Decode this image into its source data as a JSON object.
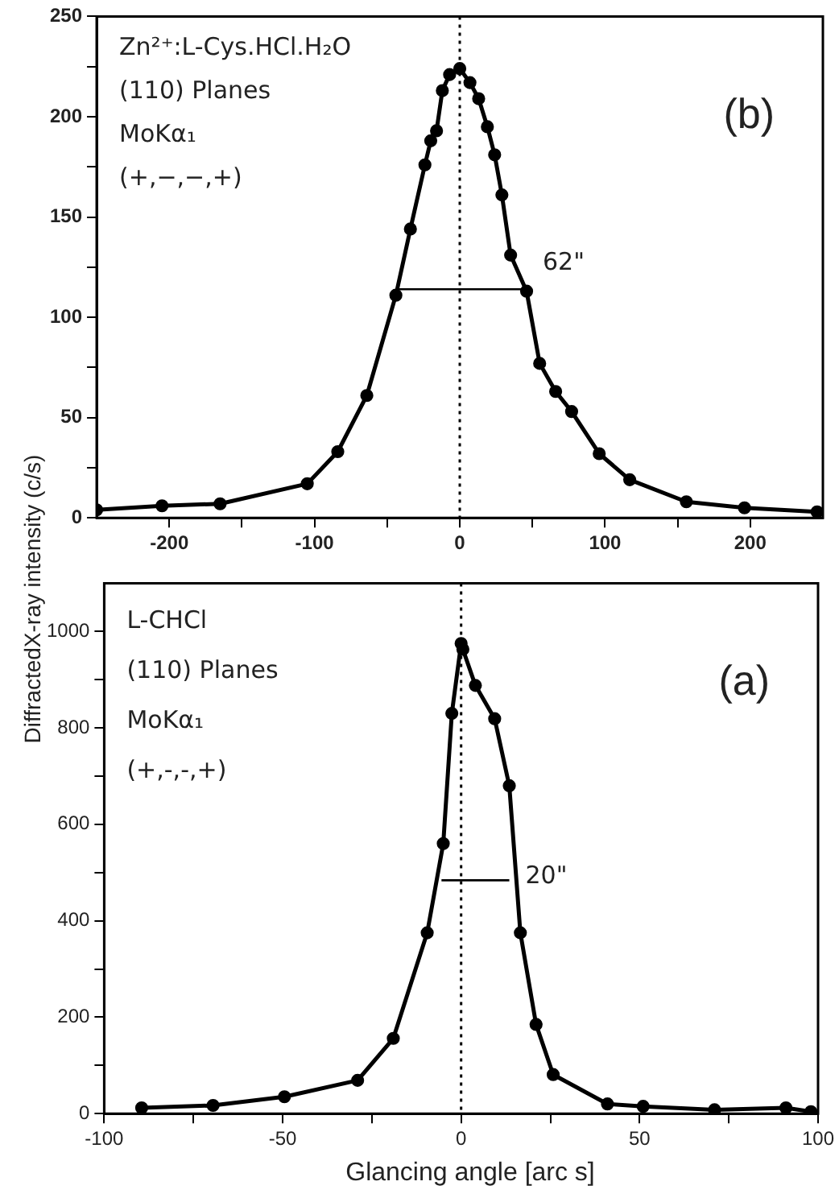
{
  "chart_data": [
    {
      "type": "line",
      "title": "(b)",
      "annotations": [
        "Zn²⁺:L-Cys.HCl.H₂O",
        "(110) Planes",
        "MoKα₁",
        "(+,−,−,+)",
        {
          "text": "62\"",
          "x": 46,
          "y": 114
        }
      ],
      "series": [
        {
          "color": "#000000",
          "marker": "circle",
          "x": [
            -250,
            -205,
            -165,
            -105,
            -84,
            -64,
            -44,
            -34,
            -24,
            -20,
            -16,
            -12,
            -7,
            0,
            7,
            13,
            19,
            24,
            29,
            35,
            46,
            55,
            66,
            77,
            96,
            117,
            156,
            196,
            246
          ],
          "values": [
            4,
            6,
            7,
            17,
            33,
            61,
            111,
            144,
            176,
            188,
            193,
            213,
            221,
            224,
            217,
            209,
            195,
            181,
            161,
            131,
            113,
            77,
            63,
            53,
            32,
            19,
            8,
            5,
            3
          ]
        },
        {
          "type": "line",
          "color": "#000000",
          "marker": "none",
          "x": [
            -44,
            46
          ],
          "values": [
            114,
            114
          ]
        }
      ],
      "ref_lines": [
        {
          "axis": "x",
          "value": 0,
          "line_style": "dotted",
          "color": "#000000"
        }
      ],
      "xlim": [
        -250,
        250
      ],
      "xticks": [
        -200,
        {
          "value": -150,
          "label": null
        },
        -100,
        {
          "value": -50,
          "label": null
        },
        0,
        {
          "value": 50,
          "label": null
        },
        100,
        {
          "value": 150,
          "label": null
        },
        200
      ],
      "ylim": [
        0,
        250
      ],
      "yticks": [
        0,
        {
          "value": 25,
          "label": null
        },
        50,
        {
          "value": 75,
          "label": null
        },
        100,
        {
          "value": 125,
          "label": null
        },
        150,
        {
          "value": 175,
          "label": null
        },
        200,
        {
          "value": 225,
          "label": null
        },
        250
      ],
      "grid": false,
      "legend": false,
      "line_style": "solid"
    },
    {
      "type": "line",
      "title": "(a)",
      "xlabel": "Glancing angle [arc s]",
      "ylabel": "DiffractedX-ray intensity (c/s)",
      "annotations": [
        "L-CHCl",
        "(110) Planes",
        "MoKα₁",
        "(+,-,-,+)",
        {
          "text": "20\"",
          "x": 13.5,
          "y": 484
        }
      ],
      "series": [
        {
          "color": "#000000",
          "marker": "circle",
          "x": [
            -89.5,
            -69.5,
            -49.5,
            -29,
            -19,
            -9.5,
            -5,
            -2.6,
            0,
            0.5,
            4,
            9.4,
            13.5,
            16.6,
            21,
            25.8,
            41,
            51,
            71,
            91,
            98
          ],
          "values": [
            12,
            17,
            35,
            69,
            156,
            375,
            560,
            830,
            975,
            963,
            888,
            819,
            680,
            375,
            185,
            81,
            20,
            15,
            8,
            12,
            4
          ]
        },
        {
          "type": "line",
          "color": "#000000",
          "marker": "none",
          "x": [
            -5.5,
            13.5
          ],
          "values": [
            484,
            484
          ]
        }
      ],
      "ref_lines": [
        {
          "axis": "x",
          "value": 0,
          "line_style": "dotted",
          "color": "#000000"
        }
      ],
      "xlim": [
        -100,
        100
      ],
      "xticks": [
        -100,
        {
          "value": -75,
          "label": null
        },
        -50,
        {
          "value": -25,
          "label": null
        },
        0,
        {
          "value": 25,
          "label": null
        },
        50,
        {
          "value": 75,
          "label": null
        },
        100
      ],
      "ylim": [
        0,
        1100
      ],
      "yticks": [
        0,
        {
          "value": 100,
          "label": null
        },
        200,
        {
          "value": 300,
          "label": null
        },
        400,
        {
          "value": 500,
          "label": null
        },
        600,
        {
          "value": 700,
          "label": null
        },
        800,
        {
          "value": 900,
          "label": null
        },
        1000
      ],
      "grid": false,
      "legend": false,
      "line_style": "solid"
    }
  ]
}
